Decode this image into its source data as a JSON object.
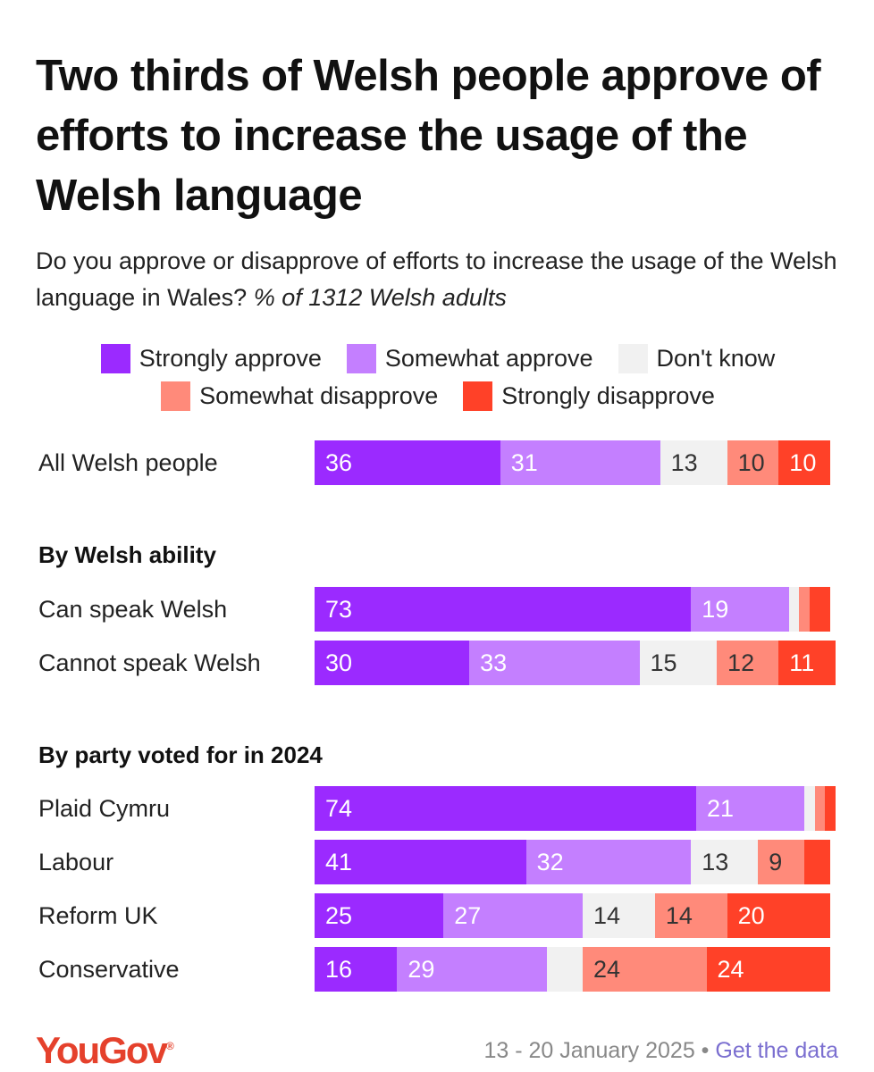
{
  "title": "Two thirds of Welsh people approve of efforts to increase the usage of the Welsh language",
  "subtitle": "Do you approve or disapprove of efforts to increase the usage of the Welsh language in Wales?",
  "subtitle_italic": "% of 1312 Welsh adults",
  "footer": {
    "date": "13 - 20 January 2025",
    "separator": "•",
    "link": "Get the data"
  },
  "logo": "YouGov",
  "chart_data": {
    "type": "bar",
    "orientation": "horizontal",
    "stacked": true,
    "legend_position": "top",
    "series": [
      {
        "name": "Strongly approve",
        "color": "#9b2aff",
        "label_color": "#ffffff"
      },
      {
        "name": "Somewhat approve",
        "color": "#c47fff",
        "label_color": "#ffffff"
      },
      {
        "name": "Don't know",
        "color": "#f1f1f1",
        "label_color": "#333333"
      },
      {
        "name": "Somewhat disapprove",
        "color": "#ff8a7a",
        "label_color": "#333333"
      },
      {
        "name": "Strongly disapprove",
        "color": "#ff4128",
        "label_color": "#ffffff"
      }
    ],
    "groups": [
      {
        "heading": "",
        "rows": [
          {
            "label": "All Welsh people",
            "values": [
              36,
              31,
              13,
              10,
              10
            ]
          }
        ]
      },
      {
        "heading": "By Welsh ability",
        "rows": [
          {
            "label": "Can speak Welsh",
            "values": [
              73,
              19,
              2,
              2,
              4
            ]
          },
          {
            "label": "Cannot speak Welsh",
            "values": [
              30,
              33,
              15,
              12,
              11
            ]
          }
        ]
      },
      {
        "heading": "By party voted for in 2024",
        "rows": [
          {
            "label": "Plaid Cymru",
            "values": [
              74,
              21,
              2,
              2,
              1
            ]
          },
          {
            "label": "Labour",
            "values": [
              41,
              32,
              13,
              9,
              5
            ]
          },
          {
            "label": "Reform UK",
            "values": [
              25,
              27,
              14,
              14,
              20
            ]
          },
          {
            "label": "Conservative",
            "values": [
              16,
              29,
              7,
              24,
              24
            ]
          }
        ]
      }
    ],
    "min_labelled_value": 9
  }
}
